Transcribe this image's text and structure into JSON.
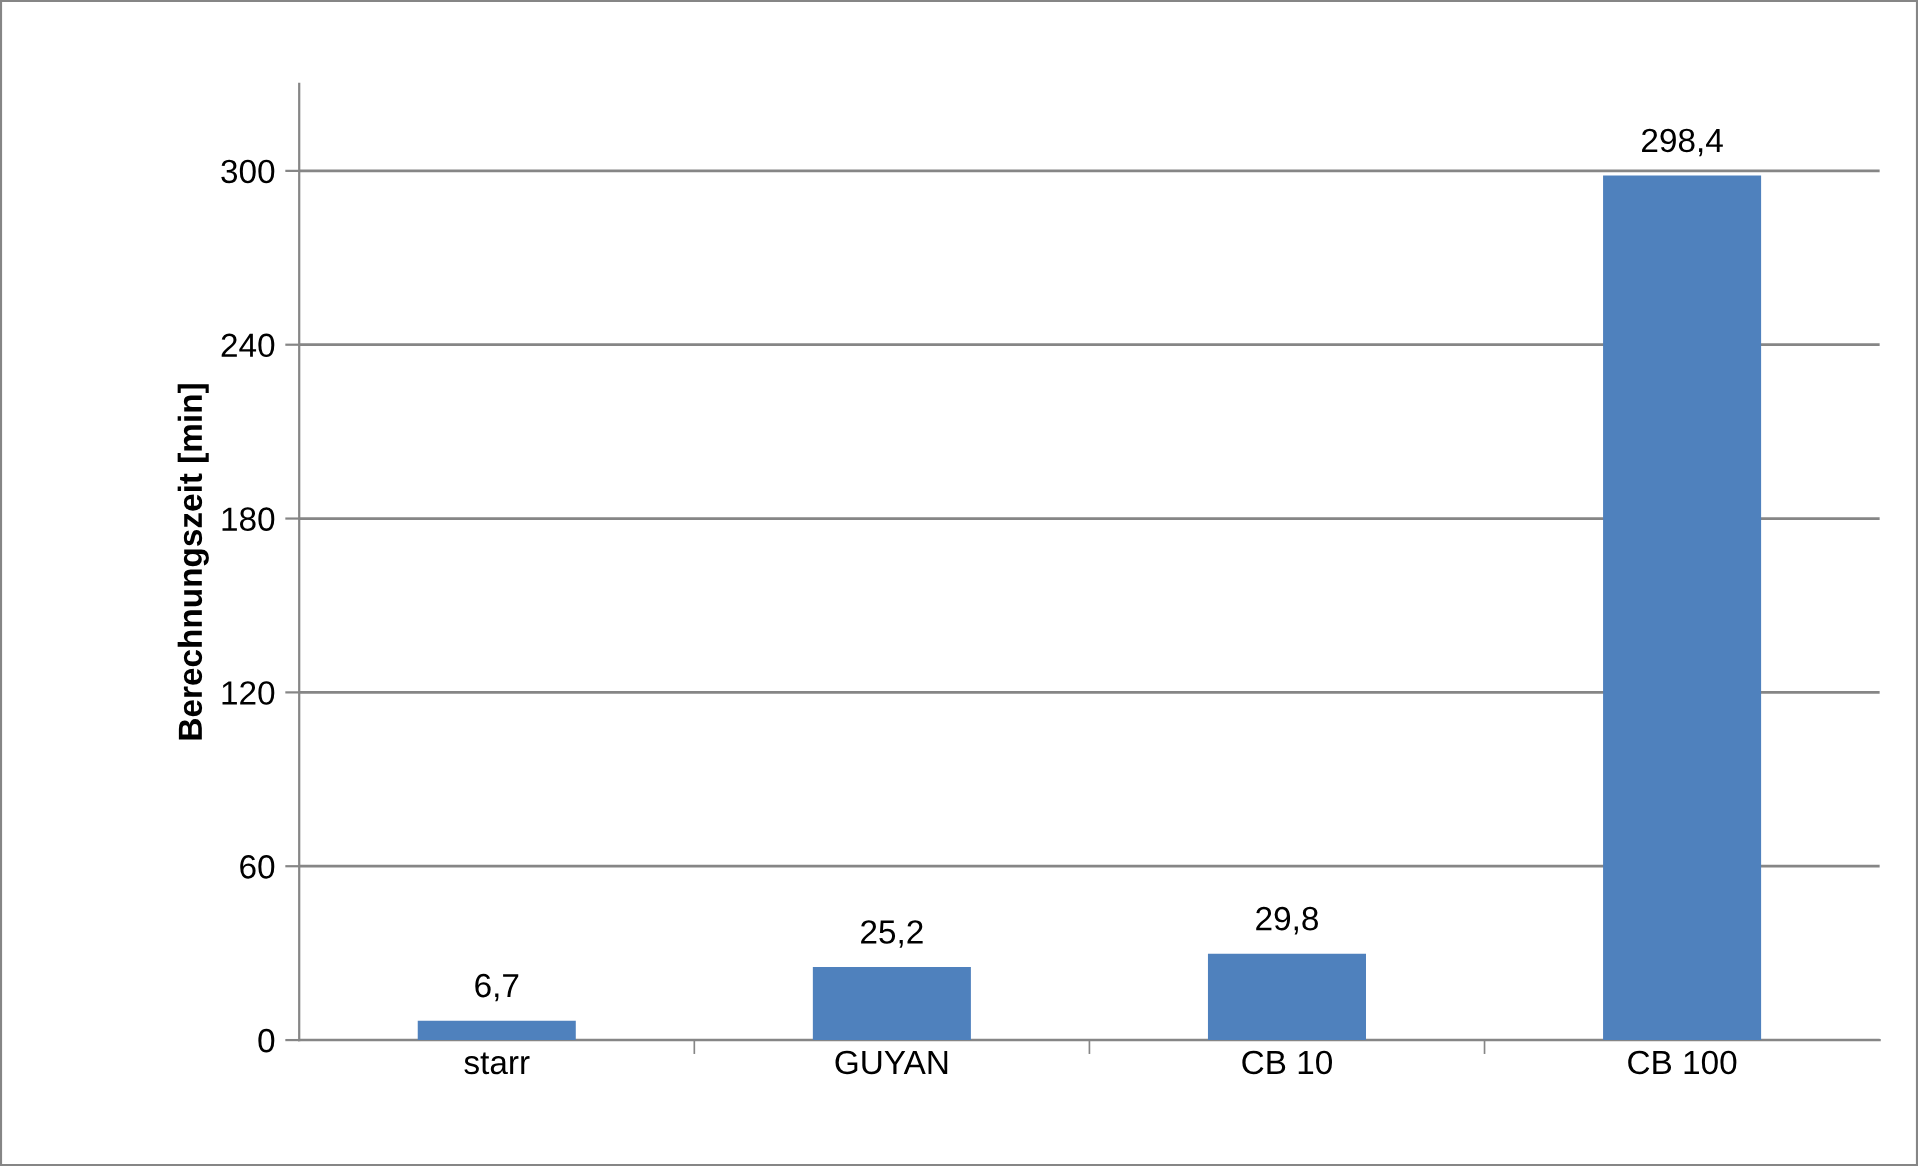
{
  "chart_data": {
    "type": "bar",
    "ylabel": "Berechnungszeit [min]",
    "categories": [
      "starr",
      "GUYAN",
      "CB 10",
      "CB 100"
    ],
    "values": [
      6.7,
      25.2,
      29.8,
      298.4
    ],
    "value_labels": [
      "6,7",
      "25,2",
      "29,8",
      "298,4"
    ],
    "color": "#4f81bd",
    "ylim": [
      0,
      330
    ],
    "yticks": [
      0,
      60,
      120,
      180,
      240,
      300
    ],
    "grid": "y",
    "legend": false
  }
}
